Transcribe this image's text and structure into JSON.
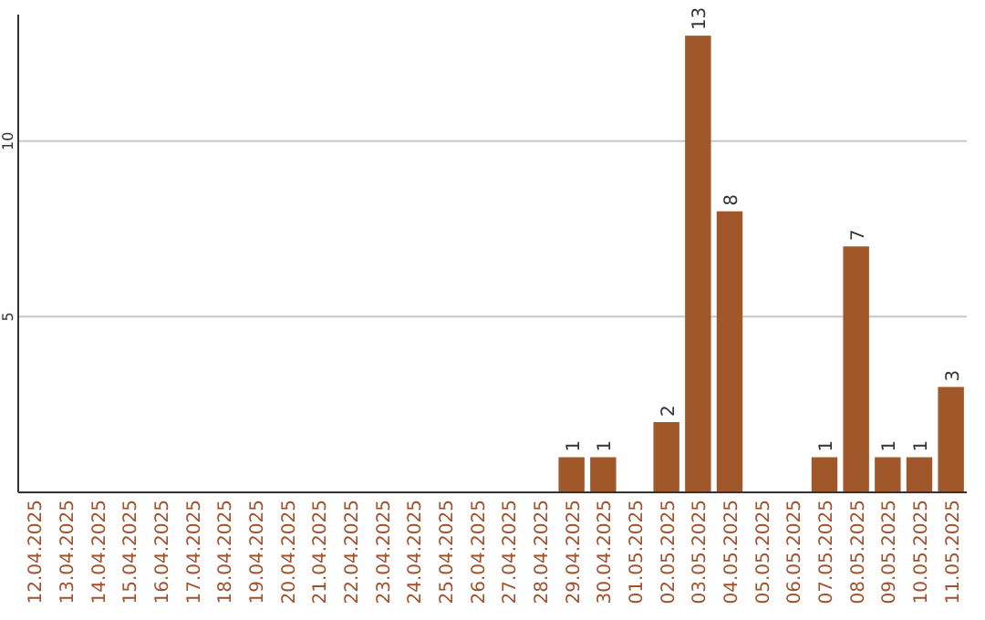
{
  "chart_data": {
    "type": "bar",
    "categories": [
      "12.04.2025",
      "13.04.2025",
      "14.04.2025",
      "15.04.2025",
      "16.04.2025",
      "17.04.2025",
      "18.04.2025",
      "19.04.2025",
      "20.04.2025",
      "21.04.2025",
      "22.04.2025",
      "23.04.2025",
      "24.04.2025",
      "25.04.2025",
      "26.04.2025",
      "27.04.2025",
      "28.04.2025",
      "29.04.2025",
      "30.04.2025",
      "01.05.2025",
      "02.05.2025",
      "03.05.2025",
      "04.05.2025",
      "05.05.2025",
      "06.05.2025",
      "07.05.2025",
      "08.05.2025",
      "09.05.2025",
      "10.05.2025",
      "11.05.2025"
    ],
    "values": [
      0,
      0,
      0,
      0,
      0,
      0,
      0,
      0,
      0,
      0,
      0,
      0,
      0,
      0,
      0,
      0,
      0,
      1,
      1,
      0,
      2,
      13,
      8,
      0,
      0,
      1,
      7,
      1,
      1,
      3
    ],
    "value_labels": [
      null,
      null,
      null,
      null,
      null,
      null,
      null,
      null,
      null,
      null,
      null,
      null,
      null,
      null,
      null,
      null,
      null,
      "1",
      "1",
      null,
      "2",
      "13",
      "8",
      null,
      null,
      "1",
      "7",
      "1",
      "1",
      "3"
    ],
    "color": "#a0582a",
    "ylim": [
      0,
      13.6
    ],
    "yticks": [
      5,
      10
    ],
    "grid": "y"
  }
}
